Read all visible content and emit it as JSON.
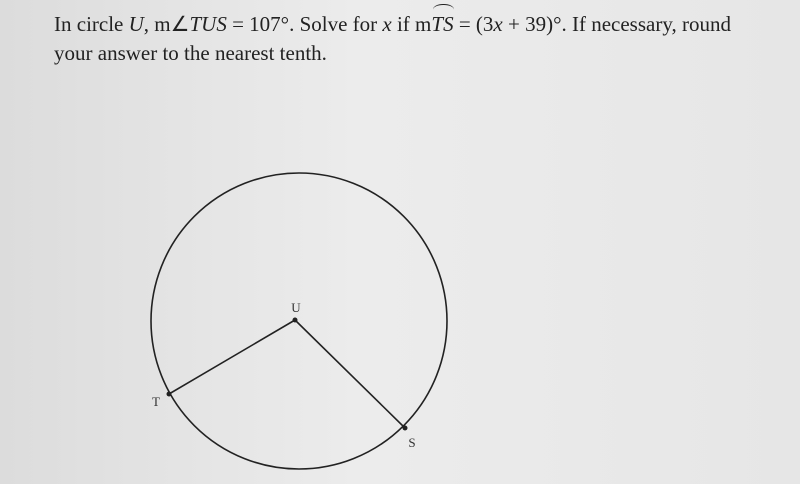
{
  "question": {
    "parts": [
      "In circle ",
      "U",
      ", m∠",
      "TUS",
      " = 107°. Solve for ",
      "x",
      " if m",
      "TS",
      " = (3",
      "x",
      " + 39)°. If necessary, round your answer to the nearest tenth."
    ]
  },
  "diagram": {
    "labels": {
      "center": "U",
      "point_1": "T",
      "point_2": "S"
    }
  }
}
